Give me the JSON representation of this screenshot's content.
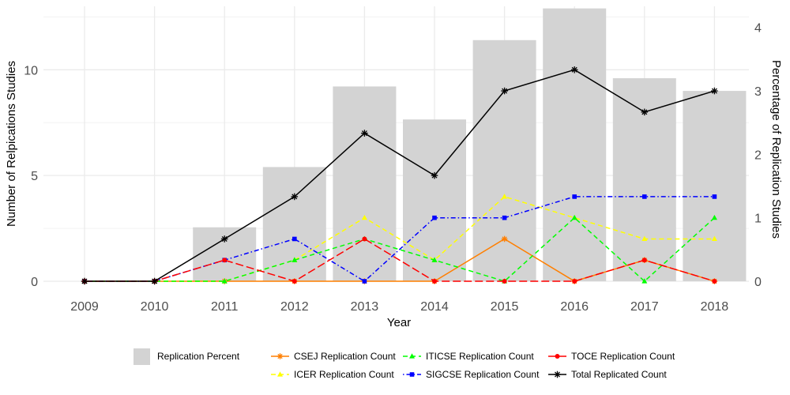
{
  "chart_data": {
    "type": "bar+line",
    "xlabel": "Year",
    "ylabel_left": "Number of Relpications Studies",
    "ylabel_right": "Percentage of Replication Studies",
    "categories": [
      "2009",
      "2010",
      "2011",
      "2012",
      "2013",
      "2014",
      "2015",
      "2016",
      "2017",
      "2018"
    ],
    "ylim_left": [
      0,
      13
    ],
    "ylim_right": [
      0,
      4.333
    ],
    "yticks_left": [
      "0",
      "5",
      "10"
    ],
    "yticks_right": [
      "0",
      "1",
      "2",
      "3",
      "4"
    ],
    "grid": true,
    "bars": {
      "name": "Replication Percent",
      "axis": "right",
      "color": "#d3d3d3",
      "values": [
        0,
        0,
        0.85,
        1.8,
        3.07,
        2.55,
        3.8,
        4.3,
        3.2,
        3.0
      ]
    },
    "series": [
      {
        "name": "CSEJ Replication Count",
        "color": "#ff7f00",
        "dash": "solid",
        "marker": "star",
        "values": [
          0,
          0,
          0,
          0,
          0,
          0,
          2,
          0,
          1,
          0
        ]
      },
      {
        "name": "ICER Replication Count",
        "color": "#ffff00",
        "dash": "dashed",
        "marker": "triangle",
        "values": [
          0,
          0,
          0,
          1,
          3,
          1,
          4,
          3,
          2,
          2
        ]
      },
      {
        "name": "ITICSE Replication Count",
        "color": "#00ff00",
        "dash": "dashed",
        "marker": "triangle",
        "values": [
          0,
          0,
          0,
          1,
          2,
          1,
          0,
          3,
          0,
          3
        ]
      },
      {
        "name": "SIGCSE Replication Count",
        "color": "#0000ff",
        "dash": "dotdash",
        "marker": "square",
        "values": [
          0,
          0,
          1,
          2,
          0,
          3,
          3,
          4,
          4,
          4
        ]
      },
      {
        "name": "TOCE Replication Count",
        "color": "#ff0000",
        "dash": "longdash",
        "marker": "circle",
        "values": [
          0,
          0,
          1,
          0,
          2,
          0,
          0,
          0,
          1,
          0
        ]
      },
      {
        "name": "Total Replicated Count",
        "color": "#000000",
        "dash": "solid",
        "marker": "asterisk",
        "values": [
          0,
          0,
          2,
          4,
          7,
          5,
          9,
          10,
          8,
          9
        ]
      }
    ],
    "legend_position": "bottom"
  }
}
